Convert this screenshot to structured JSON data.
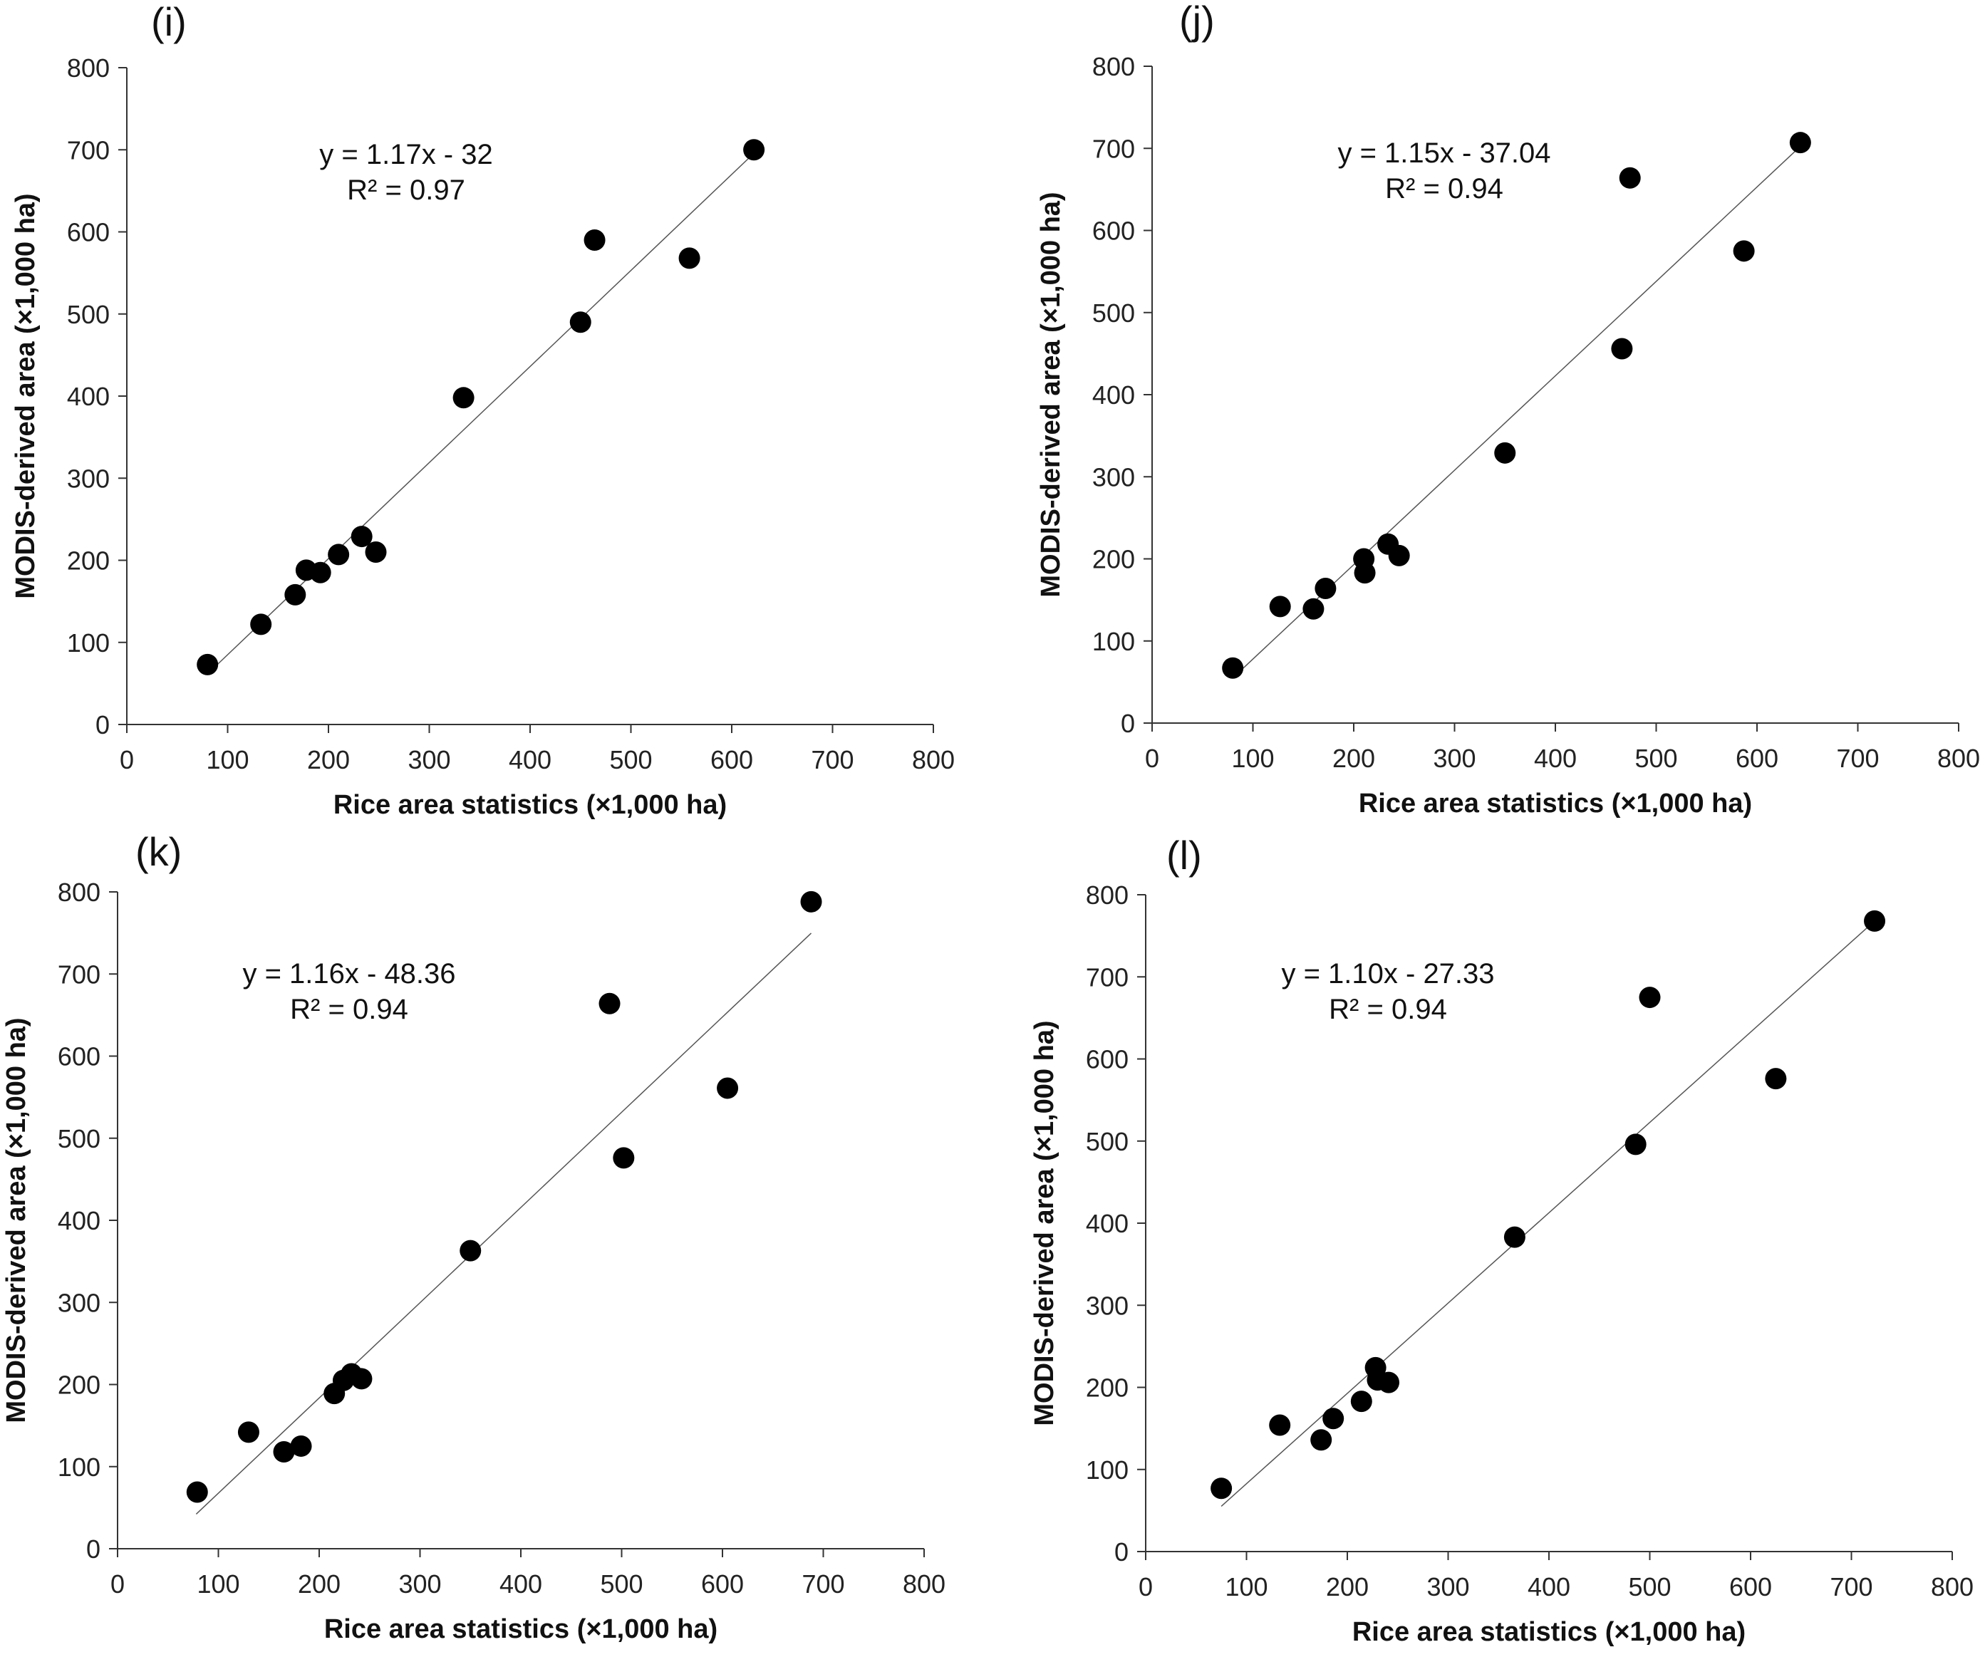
{
  "chart_data": [
    {
      "type": "scatter",
      "panel_label": "(i)",
      "xlabel": "Rice area statistics (×1,000 ha)",
      "ylabel": "MODIS-derived area (×1,000 ha)",
      "xlim": [
        0,
        800
      ],
      "ylim": [
        0,
        800
      ],
      "ticks": [
        "0",
        "100",
        "200",
        "300",
        "400",
        "500",
        "600",
        "700",
        "800"
      ],
      "grid": false,
      "equation": "y = 1.17x - 32",
      "r2": "R² = 0.97",
      "trend": {
        "slope": 1.17,
        "intercept": -32,
        "x_range": [
          80,
          625
        ]
      },
      "points": [
        {
          "x": 80,
          "y": 73
        },
        {
          "x": 133,
          "y": 122
        },
        {
          "x": 167,
          "y": 158
        },
        {
          "x": 178,
          "y": 188
        },
        {
          "x": 192,
          "y": 185
        },
        {
          "x": 210,
          "y": 207
        },
        {
          "x": 233,
          "y": 229
        },
        {
          "x": 247,
          "y": 210
        },
        {
          "x": 334,
          "y": 398
        },
        {
          "x": 450,
          "y": 490
        },
        {
          "x": 464,
          "y": 590
        },
        {
          "x": 558,
          "y": 568
        },
        {
          "x": 622,
          "y": 700
        }
      ]
    },
    {
      "type": "scatter",
      "panel_label": "(j)",
      "xlabel": "Rice area statistics (×1,000 ha)",
      "ylabel": "MODIS-derived area (×1,000 ha)",
      "xlim": [
        0,
        800
      ],
      "ylim": [
        0,
        800
      ],
      "ticks": [
        "0",
        "100",
        "200",
        "300",
        "400",
        "500",
        "600",
        "700",
        "800"
      ],
      "grid": false,
      "equation": "y = 1.15x - 37.04",
      "r2": "R² = 0.94",
      "trend": {
        "slope": 1.15,
        "intercept": -37.04,
        "x_range": [
          80,
          645
        ]
      },
      "points": [
        {
          "x": 80,
          "y": 67
        },
        {
          "x": 127,
          "y": 142
        },
        {
          "x": 160,
          "y": 139
        },
        {
          "x": 172,
          "y": 164
        },
        {
          "x": 210,
          "y": 200
        },
        {
          "x": 211,
          "y": 183
        },
        {
          "x": 234,
          "y": 218
        },
        {
          "x": 245,
          "y": 204
        },
        {
          "x": 350,
          "y": 329
        },
        {
          "x": 466,
          "y": 456
        },
        {
          "x": 474,
          "y": 664
        },
        {
          "x": 587,
          "y": 575
        },
        {
          "x": 643,
          "y": 707
        }
      ]
    },
    {
      "type": "scatter",
      "panel_label": "(k)",
      "xlabel": "Rice area statistics (×1,000 ha)",
      "ylabel": "MODIS-derived area (×1,000 ha)",
      "xlim": [
        0,
        800
      ],
      "ylim": [
        0,
        800
      ],
      "ticks": [
        "0",
        "100",
        "200",
        "300",
        "400",
        "500",
        "600",
        "700",
        "800"
      ],
      "grid": false,
      "equation": "y = 1.16x - 48.36",
      "r2": "R² = 0.94",
      "trend": {
        "slope": 1.16,
        "intercept": -48.36,
        "x_range": [
          78,
          688
        ]
      },
      "points": [
        {
          "x": 79,
          "y": 69
        },
        {
          "x": 130,
          "y": 142
        },
        {
          "x": 165,
          "y": 118
        },
        {
          "x": 182,
          "y": 125
        },
        {
          "x": 215,
          "y": 189
        },
        {
          "x": 224,
          "y": 205
        },
        {
          "x": 232,
          "y": 213
        },
        {
          "x": 242,
          "y": 207
        },
        {
          "x": 350,
          "y": 363
        },
        {
          "x": 488,
          "y": 664
        },
        {
          "x": 502,
          "y": 476
        },
        {
          "x": 605,
          "y": 561
        },
        {
          "x": 688,
          "y": 788
        }
      ]
    },
    {
      "type": "scatter",
      "panel_label": "(l)",
      "xlabel": "Rice area statistics (×1,000 ha)",
      "ylabel": "MODIS-derived area (×1,000 ha)",
      "xlim": [
        0,
        800
      ],
      "ylim": [
        0,
        800
      ],
      "ticks": [
        "0",
        "100",
        "200",
        "300",
        "400",
        "500",
        "600",
        "700",
        "800"
      ],
      "grid": false,
      "equation": "y = 1.10x - 27.33",
      "r2": "R² = 0.94",
      "trend": {
        "slope": 1.1,
        "intercept": -27.33,
        "x_range": [
          75,
          728
        ]
      },
      "points": [
        {
          "x": 75,
          "y": 77
        },
        {
          "x": 133,
          "y": 154
        },
        {
          "x": 174,
          "y": 136
        },
        {
          "x": 186,
          "y": 162
        },
        {
          "x": 214,
          "y": 183
        },
        {
          "x": 228,
          "y": 224
        },
        {
          "x": 230,
          "y": 209
        },
        {
          "x": 241,
          "y": 206
        },
        {
          "x": 366,
          "y": 383
        },
        {
          "x": 486,
          "y": 496
        },
        {
          "x": 500,
          "y": 675
        },
        {
          "x": 625,
          "y": 576
        },
        {
          "x": 723,
          "y": 768
        }
      ]
    }
  ]
}
